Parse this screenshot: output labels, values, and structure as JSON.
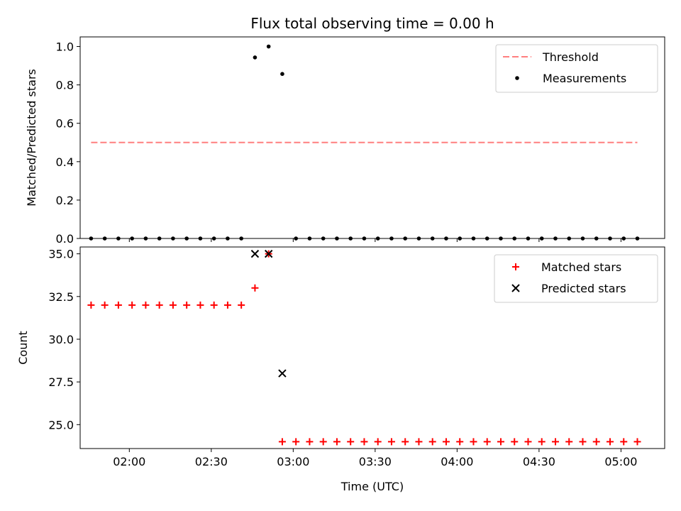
{
  "chart_data": [
    {
      "type": "scatter",
      "title": "Flux total observing time = 0.00 h",
      "xlabel": "",
      "ylabel": "Matched/Predicted stars",
      "xlim": [
        "01:42",
        "05:16"
      ],
      "ylim": [
        0,
        1.05
      ],
      "xticks": [
        "02:00",
        "02:30",
        "03:00",
        "03:30",
        "04:00",
        "04:30",
        "05:00"
      ],
      "yticks": [
        "0.0",
        "0.2",
        "0.4",
        "0.6",
        "0.8",
        "1.0"
      ],
      "legend": {
        "position": "upper-right",
        "entries": [
          "Threshold",
          "Measurements"
        ]
      },
      "threshold": {
        "name": "Threshold",
        "x": [
          "01:46",
          "05:06"
        ],
        "y": 0.5,
        "color": "#ff7f7f",
        "style": "dashed"
      },
      "series": [
        {
          "name": "Measurements",
          "color": "#000000",
          "x": [
            "01:46",
            "01:51",
            "01:56",
            "02:01",
            "02:06",
            "02:11",
            "02:16",
            "02:21",
            "02:26",
            "02:31",
            "02:36",
            "02:41",
            "02:46",
            "02:51",
            "02:56",
            "03:01",
            "03:06",
            "03:11",
            "03:16",
            "03:21",
            "03:26",
            "03:31",
            "03:36",
            "03:41",
            "03:46",
            "03:51",
            "03:56",
            "04:01",
            "04:06",
            "04:11",
            "04:16",
            "04:21",
            "04:26",
            "04:31",
            "04:36",
            "04:41",
            "04:46",
            "04:51",
            "04:56",
            "05:01",
            "05:06"
          ],
          "y": [
            0,
            0,
            0,
            0,
            0,
            0,
            0,
            0,
            0,
            0,
            0,
            0,
            0.943,
            1.0,
            0.857,
            0,
            0,
            0,
            0,
            0,
            0,
            0,
            0,
            0,
            0,
            0,
            0,
            0,
            0,
            0,
            0,
            0,
            0,
            0,
            0,
            0,
            0,
            0,
            0,
            0,
            0
          ]
        }
      ]
    },
    {
      "type": "scatter",
      "title": "",
      "xlabel": "Time (UTC)",
      "ylabel": "Count",
      "xlim": [
        "01:42",
        "05:16"
      ],
      "ylim": [
        23.6,
        35.4
      ],
      "xticks": [
        "02:00",
        "02:30",
        "03:00",
        "03:30",
        "04:00",
        "04:30",
        "05:00"
      ],
      "yticks": [
        "25.0",
        "27.5",
        "30.0",
        "32.5",
        "35.0"
      ],
      "legend": {
        "position": "upper-right",
        "entries": [
          "Matched stars",
          "Predicted stars"
        ]
      },
      "series": [
        {
          "name": "Matched stars",
          "marker": "plus",
          "color": "#ff0000",
          "x": [
            "01:46",
            "01:51",
            "01:56",
            "02:01",
            "02:06",
            "02:11",
            "02:16",
            "02:21",
            "02:26",
            "02:31",
            "02:36",
            "02:41",
            "02:46",
            "02:51",
            "02:56",
            "03:01",
            "03:06",
            "03:11",
            "03:16",
            "03:21",
            "03:26",
            "03:31",
            "03:36",
            "03:41",
            "03:46",
            "03:51",
            "03:56",
            "04:01",
            "04:06",
            "04:11",
            "04:16",
            "04:21",
            "04:26",
            "04:31",
            "04:36",
            "04:41",
            "04:46",
            "04:51",
            "04:56",
            "05:01",
            "05:06"
          ],
          "y": [
            32,
            32,
            32,
            32,
            32,
            32,
            32,
            32,
            32,
            32,
            32,
            32,
            33,
            35,
            24,
            24,
            24,
            24,
            24,
            24,
            24,
            24,
            24,
            24,
            24,
            24,
            24,
            24,
            24,
            24,
            24,
            24,
            24,
            24,
            24,
            24,
            24,
            24,
            24,
            24,
            24
          ]
        },
        {
          "name": "Predicted stars",
          "marker": "x",
          "color": "#000000",
          "x": [
            "02:46",
            "02:51",
            "02:56"
          ],
          "y": [
            35,
            35,
            28
          ]
        }
      ]
    }
  ]
}
